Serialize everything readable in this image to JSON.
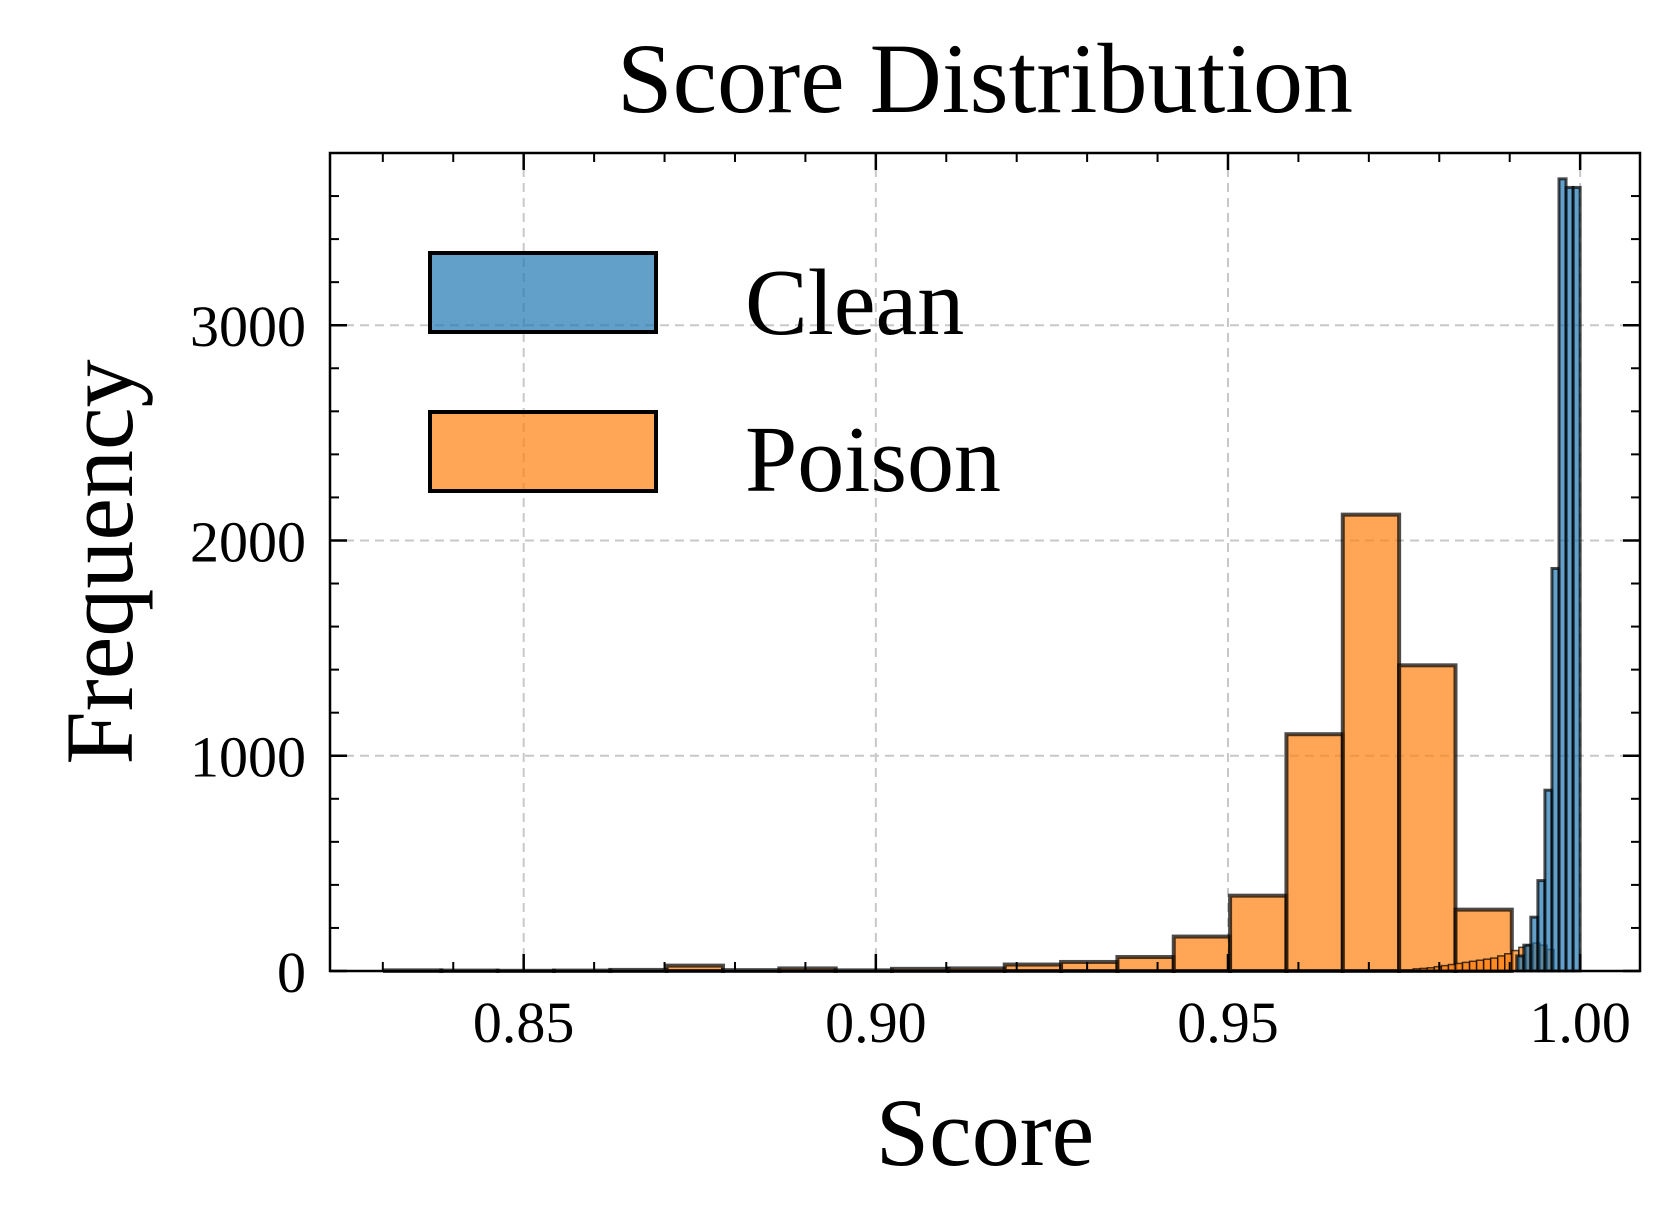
{
  "chart_data": {
    "type": "bar",
    "subtype": "histogram",
    "title": "Score Distribution",
    "xlabel": "Score",
    "ylabel": "Frequency",
    "xlim": [
      0.8225,
      1.0085
    ],
    "ylim": [
      0,
      3800
    ],
    "xticks": [
      0.85,
      0.9,
      0.95,
      1.0
    ],
    "xtick_labels": [
      "0.85",
      "0.90",
      "0.95",
      "1.00"
    ],
    "yticks": [
      0,
      1000,
      2000,
      3000
    ],
    "ytick_labels": [
      "0",
      "1000",
      "2000",
      "3000"
    ],
    "grid": true,
    "legend_position": "top-left",
    "series": [
      {
        "name": "Clean",
        "color": "#1f77b4",
        "edge_color": "#000000",
        "alpha": 0.7,
        "bins": [
          {
            "start": 0.991,
            "end": 0.992,
            "count": 70
          },
          {
            "start": 0.992,
            "end": 0.993,
            "count": 120
          },
          {
            "start": 0.993,
            "end": 0.994,
            "count": 250
          },
          {
            "start": 0.994,
            "end": 0.995,
            "count": 420
          },
          {
            "start": 0.995,
            "end": 0.996,
            "count": 840
          },
          {
            "start": 0.996,
            "end": 0.997,
            "count": 1870
          },
          {
            "start": 0.997,
            "end": 0.998,
            "count": 3680
          },
          {
            "start": 0.998,
            "end": 0.999,
            "count": 3640
          },
          {
            "start": 0.999,
            "end": 1.0,
            "count": 3640
          }
        ]
      },
      {
        "name": "Poison",
        "color": "#ff7f0e",
        "edge_color": "#000000",
        "alpha": 0.7,
        "bins": [
          {
            "start": 0.8303,
            "end": 0.8383,
            "count": 3
          },
          {
            "start": 0.8383,
            "end": 0.8463,
            "count": 2
          },
          {
            "start": 0.8463,
            "end": 0.8543,
            "count": 1
          },
          {
            "start": 0.8543,
            "end": 0.8623,
            "count": 2
          },
          {
            "start": 0.8623,
            "end": 0.8703,
            "count": 5
          },
          {
            "start": 0.8703,
            "end": 0.8783,
            "count": 25
          },
          {
            "start": 0.8783,
            "end": 0.8863,
            "count": 4
          },
          {
            "start": 0.8863,
            "end": 0.8943,
            "count": 12
          },
          {
            "start": 0.8943,
            "end": 0.9023,
            "count": 3
          },
          {
            "start": 0.9023,
            "end": 0.9103,
            "count": 10
          },
          {
            "start": 0.9103,
            "end": 0.9183,
            "count": 12
          },
          {
            "start": 0.9183,
            "end": 0.9263,
            "count": 30
          },
          {
            "start": 0.9263,
            "end": 0.9343,
            "count": 42
          },
          {
            "start": 0.9343,
            "end": 0.9423,
            "count": 65
          },
          {
            "start": 0.9423,
            "end": 0.9503,
            "count": 160
          },
          {
            "start": 0.9503,
            "end": 0.9583,
            "count": 350
          },
          {
            "start": 0.9583,
            "end": 0.9663,
            "count": 1100
          },
          {
            "start": 0.9663,
            "end": 0.9743,
            "count": 2120
          },
          {
            "start": 0.9743,
            "end": 0.9823,
            "count": 1420
          },
          {
            "start": 0.9823,
            "end": 0.9903,
            "count": 285
          }
        ],
        "tail_bins_behind_clean": [
          {
            "start": 0.9763,
            "end": 0.9773,
            "count": 10
          },
          {
            "start": 0.9773,
            "end": 0.9783,
            "count": 12
          },
          {
            "start": 0.9783,
            "end": 0.9793,
            "count": 15
          },
          {
            "start": 0.9793,
            "end": 0.9803,
            "count": 20
          },
          {
            "start": 0.9803,
            "end": 0.9813,
            "count": 25
          },
          {
            "start": 0.9813,
            "end": 0.9823,
            "count": 30
          },
          {
            "start": 0.9823,
            "end": 0.9833,
            "count": 35
          },
          {
            "start": 0.9833,
            "end": 0.9843,
            "count": 40
          },
          {
            "start": 0.9843,
            "end": 0.9853,
            "count": 45
          },
          {
            "start": 0.9853,
            "end": 0.9863,
            "count": 50
          },
          {
            "start": 0.9863,
            "end": 0.9873,
            "count": 55
          },
          {
            "start": 0.9873,
            "end": 0.9883,
            "count": 60
          },
          {
            "start": 0.9883,
            "end": 0.9893,
            "count": 70
          },
          {
            "start": 0.9893,
            "end": 0.9903,
            "count": 80
          },
          {
            "start": 0.9903,
            "end": 0.9913,
            "count": 95
          },
          {
            "start": 0.9913,
            "end": 0.9923,
            "count": 110
          },
          {
            "start": 0.9923,
            "end": 0.9933,
            "count": 120
          },
          {
            "start": 0.9933,
            "end": 0.9943,
            "count": 130
          },
          {
            "start": 0.9943,
            "end": 0.9953,
            "count": 120
          },
          {
            "start": 0.9953,
            "end": 0.9963,
            "count": 100
          }
        ]
      }
    ]
  }
}
